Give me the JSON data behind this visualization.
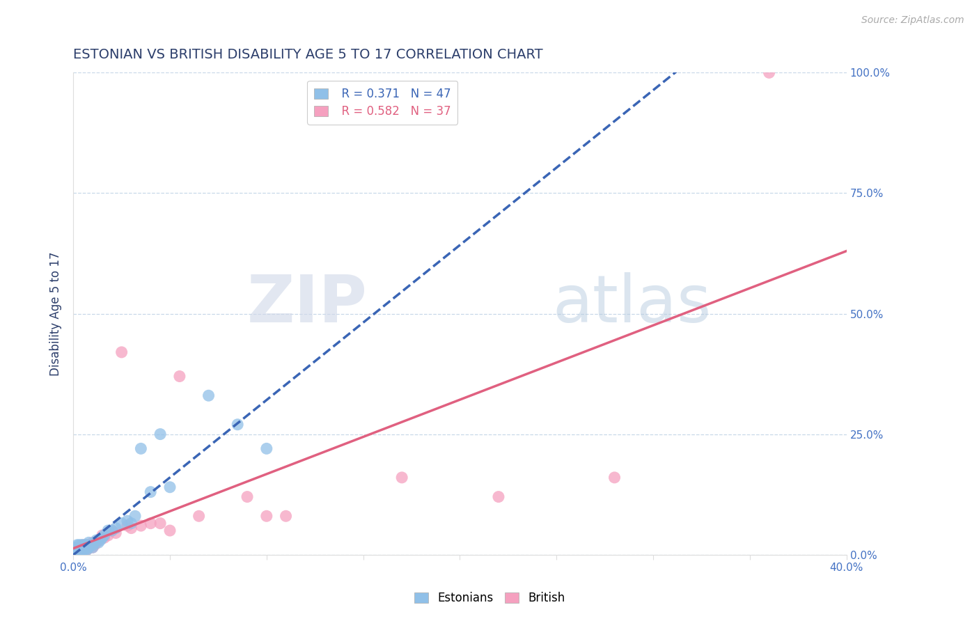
{
  "title": "ESTONIAN VS BRITISH DISABILITY AGE 5 TO 17 CORRELATION CHART",
  "source": "Source: ZipAtlas.com",
  "ylabel": "Disability Age 5 to 17",
  "xlim": [
    0.0,
    0.4
  ],
  "ylim": [
    0.0,
    1.0
  ],
  "xtick_labels": [
    "0.0%",
    "",
    "",
    "",
    "",
    "",
    "",
    "",
    "40.0%"
  ],
  "xtick_values": [
    0.0,
    0.05,
    0.1,
    0.15,
    0.2,
    0.25,
    0.3,
    0.35,
    0.4
  ],
  "ytick_labels": [
    "0.0%",
    "25.0%",
    "50.0%",
    "75.0%",
    "100.0%"
  ],
  "ytick_values": [
    0.0,
    0.25,
    0.5,
    0.75,
    1.0
  ],
  "estonian_color": "#90c0e8",
  "british_color": "#f5a0bf",
  "estonian_R": 0.371,
  "estonian_N": 47,
  "british_R": 0.582,
  "british_N": 37,
  "estonian_line_color": "#3a65b5",
  "british_line_color": "#e06080",
  "watermark_zip": "ZIP",
  "watermark_atlas": "atlas",
  "title_color": "#2c3e6b",
  "tick_color": "#4472c4",
  "grid_color": "#c8d8e8",
  "background_color": "#ffffff",
  "figsize": [
    14.06,
    8.92
  ],
  "dpi": 100,
  "estonian_x": [
    0.001,
    0.001,
    0.001,
    0.002,
    0.002,
    0.002,
    0.002,
    0.003,
    0.003,
    0.003,
    0.003,
    0.004,
    0.004,
    0.004,
    0.005,
    0.005,
    0.005,
    0.006,
    0.006,
    0.007,
    0.007,
    0.007,
    0.008,
    0.008,
    0.009,
    0.01,
    0.01,
    0.011,
    0.012,
    0.013,
    0.014,
    0.015,
    0.016,
    0.018,
    0.02,
    0.022,
    0.025,
    0.028,
    0.03,
    0.032,
    0.035,
    0.04,
    0.045,
    0.05,
    0.07,
    0.085,
    0.1
  ],
  "estonian_y": [
    0.005,
    0.01,
    0.015,
    0.005,
    0.01,
    0.015,
    0.02,
    0.005,
    0.01,
    0.015,
    0.02,
    0.01,
    0.015,
    0.02,
    0.01,
    0.015,
    0.02,
    0.01,
    0.02,
    0.01,
    0.015,
    0.02,
    0.015,
    0.025,
    0.02,
    0.015,
    0.02,
    0.025,
    0.03,
    0.025,
    0.03,
    0.035,
    0.04,
    0.05,
    0.05,
    0.055,
    0.065,
    0.07,
    0.065,
    0.08,
    0.22,
    0.13,
    0.25,
    0.14,
    0.33,
    0.27,
    0.22
  ],
  "british_x": [
    0.001,
    0.002,
    0.003,
    0.004,
    0.005,
    0.005,
    0.006,
    0.007,
    0.007,
    0.008,
    0.009,
    0.01,
    0.01,
    0.011,
    0.012,
    0.013,
    0.015,
    0.016,
    0.018,
    0.02,
    0.022,
    0.025,
    0.028,
    0.03,
    0.035,
    0.04,
    0.045,
    0.05,
    0.055,
    0.065,
    0.09,
    0.1,
    0.11,
    0.17,
    0.22,
    0.28,
    0.36
  ],
  "british_y": [
    0.005,
    0.01,
    0.01,
    0.015,
    0.01,
    0.02,
    0.015,
    0.01,
    0.02,
    0.015,
    0.02,
    0.015,
    0.025,
    0.02,
    0.025,
    0.03,
    0.04,
    0.035,
    0.04,
    0.05,
    0.045,
    0.42,
    0.06,
    0.055,
    0.06,
    0.065,
    0.065,
    0.05,
    0.37,
    0.08,
    0.12,
    0.08,
    0.08,
    0.16,
    0.12,
    0.16,
    1.0
  ]
}
